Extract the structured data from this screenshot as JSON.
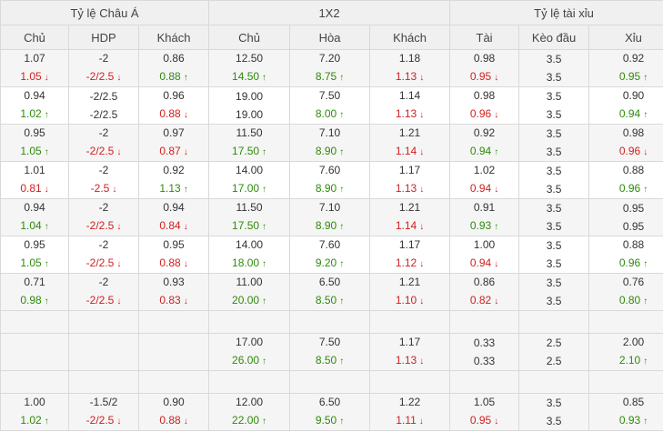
{
  "header": {
    "groups": [
      "Tỷ lệ Châu Á",
      "1X2",
      "Tỷ lệ tài xỉu"
    ],
    "columns": [
      "Chủ",
      "HDP",
      "Khách",
      "Chủ",
      "Hòa",
      "Khách",
      "Tài",
      "Kèo đầu",
      "Xỉu"
    ]
  },
  "colors": {
    "up": "#2e8b0a",
    "down": "#d12020",
    "header_bg": "#f0f0f0",
    "row_alt_bg": "#f5f5f5"
  },
  "rows": [
    {
      "bg": "alt",
      "cells": [
        [
          {
            "v": "1.07"
          },
          {
            "v": "1.05",
            "t": "down"
          }
        ],
        [
          {
            "v": "-2"
          },
          {
            "v": "-2/2.5",
            "t": "down"
          }
        ],
        [
          {
            "v": "0.86"
          },
          {
            "v": "0.88",
            "t": "up"
          }
        ],
        [
          {
            "v": "12.50"
          },
          {
            "v": "14.50",
            "t": "up"
          }
        ],
        [
          {
            "v": "7.20"
          },
          {
            "v": "8.75",
            "t": "up"
          }
        ],
        [
          {
            "v": "1.18"
          },
          {
            "v": "1.13",
            "t": "down"
          }
        ],
        [
          {
            "v": "0.98"
          },
          {
            "v": "0.95",
            "t": "down"
          }
        ],
        [
          {
            "v": "3.5"
          },
          {
            "v": "3.5"
          }
        ],
        [
          {
            "v": "0.92"
          },
          {
            "v": "0.95",
            "t": "up"
          }
        ]
      ]
    },
    {
      "bg": "wh",
      "cells": [
        [
          {
            "v": "0.94"
          },
          {
            "v": "1.02",
            "t": "up"
          }
        ],
        [
          {
            "v": "-2/2.5"
          },
          {
            "v": "-2/2.5"
          }
        ],
        [
          {
            "v": "0.96"
          },
          {
            "v": "0.88",
            "t": "down"
          }
        ],
        [
          {
            "v": "19.00"
          },
          {
            "v": "19.00"
          }
        ],
        [
          {
            "v": "7.50"
          },
          {
            "v": "8.00",
            "t": "up"
          }
        ],
        [
          {
            "v": "1.14"
          },
          {
            "v": "1.13",
            "t": "down"
          }
        ],
        [
          {
            "v": "0.98"
          },
          {
            "v": "0.96",
            "t": "down"
          }
        ],
        [
          {
            "v": "3.5"
          },
          {
            "v": "3.5"
          }
        ],
        [
          {
            "v": "0.90"
          },
          {
            "v": "0.94",
            "t": "up"
          }
        ]
      ]
    },
    {
      "bg": "alt",
      "cells": [
        [
          {
            "v": "0.95"
          },
          {
            "v": "1.05",
            "t": "up"
          }
        ],
        [
          {
            "v": "-2"
          },
          {
            "v": "-2/2.5",
            "t": "down"
          }
        ],
        [
          {
            "v": "0.97"
          },
          {
            "v": "0.87",
            "t": "down"
          }
        ],
        [
          {
            "v": "11.50"
          },
          {
            "v": "17.50",
            "t": "up"
          }
        ],
        [
          {
            "v": "7.10"
          },
          {
            "v": "8.90",
            "t": "up"
          }
        ],
        [
          {
            "v": "1.21"
          },
          {
            "v": "1.14",
            "t": "down"
          }
        ],
        [
          {
            "v": "0.92"
          },
          {
            "v": "0.94",
            "t": "up"
          }
        ],
        [
          {
            "v": "3.5"
          },
          {
            "v": "3.5"
          }
        ],
        [
          {
            "v": "0.98"
          },
          {
            "v": "0.96",
            "t": "down"
          }
        ]
      ]
    },
    {
      "bg": "wh",
      "cells": [
        [
          {
            "v": "1.01"
          },
          {
            "v": "0.81",
            "t": "down"
          }
        ],
        [
          {
            "v": "-2"
          },
          {
            "v": "-2.5",
            "t": "down"
          }
        ],
        [
          {
            "v": "0.92"
          },
          {
            "v": "1.13",
            "t": "up"
          }
        ],
        [
          {
            "v": "14.00"
          },
          {
            "v": "17.00",
            "t": "up"
          }
        ],
        [
          {
            "v": "7.60"
          },
          {
            "v": "8.90",
            "t": "up"
          }
        ],
        [
          {
            "v": "1.17"
          },
          {
            "v": "1.13",
            "t": "down"
          }
        ],
        [
          {
            "v": "1.02"
          },
          {
            "v": "0.94",
            "t": "down"
          }
        ],
        [
          {
            "v": "3.5"
          },
          {
            "v": "3.5"
          }
        ],
        [
          {
            "v": "0.88"
          },
          {
            "v": "0.96",
            "t": "up"
          }
        ]
      ]
    },
    {
      "bg": "alt",
      "cells": [
        [
          {
            "v": "0.94"
          },
          {
            "v": "1.04",
            "t": "up"
          }
        ],
        [
          {
            "v": "-2"
          },
          {
            "v": "-2/2.5",
            "t": "down"
          }
        ],
        [
          {
            "v": "0.94"
          },
          {
            "v": "0.84",
            "t": "down"
          }
        ],
        [
          {
            "v": "11.50"
          },
          {
            "v": "17.50",
            "t": "up"
          }
        ],
        [
          {
            "v": "7.10"
          },
          {
            "v": "8.90",
            "t": "up"
          }
        ],
        [
          {
            "v": "1.21"
          },
          {
            "v": "1.14",
            "t": "down"
          }
        ],
        [
          {
            "v": "0.91"
          },
          {
            "v": "0.93",
            "t": "up"
          }
        ],
        [
          {
            "v": "3.5"
          },
          {
            "v": "3.5"
          }
        ],
        [
          {
            "v": "0.95"
          },
          {
            "v": "0.95"
          }
        ]
      ]
    },
    {
      "bg": "wh",
      "cells": [
        [
          {
            "v": "0.95"
          },
          {
            "v": "1.05",
            "t": "up"
          }
        ],
        [
          {
            "v": "-2"
          },
          {
            "v": "-2/2.5",
            "t": "down"
          }
        ],
        [
          {
            "v": "0.95"
          },
          {
            "v": "0.88",
            "t": "down"
          }
        ],
        [
          {
            "v": "14.00"
          },
          {
            "v": "18.00",
            "t": "up"
          }
        ],
        [
          {
            "v": "7.60"
          },
          {
            "v": "9.20",
            "t": "up"
          }
        ],
        [
          {
            "v": "1.17"
          },
          {
            "v": "1.12",
            "t": "down"
          }
        ],
        [
          {
            "v": "1.00"
          },
          {
            "v": "0.94",
            "t": "down"
          }
        ],
        [
          {
            "v": "3.5"
          },
          {
            "v": "3.5"
          }
        ],
        [
          {
            "v": "0.88"
          },
          {
            "v": "0.96",
            "t": "up"
          }
        ]
      ]
    },
    {
      "bg": "alt",
      "cells": [
        [
          {
            "v": "0.71"
          },
          {
            "v": "0.98",
            "t": "up"
          }
        ],
        [
          {
            "v": "-2"
          },
          {
            "v": "-2/2.5",
            "t": "down"
          }
        ],
        [
          {
            "v": "0.93"
          },
          {
            "v": "0.83",
            "t": "down"
          }
        ],
        [
          {
            "v": "11.00"
          },
          {
            "v": "20.00",
            "t": "up"
          }
        ],
        [
          {
            "v": "6.50"
          },
          {
            "v": "8.50",
            "t": "up"
          }
        ],
        [
          {
            "v": "1.21"
          },
          {
            "v": "1.10",
            "t": "down"
          }
        ],
        [
          {
            "v": "0.86"
          },
          {
            "v": "0.82",
            "t": "down"
          }
        ],
        [
          {
            "v": "3.5"
          },
          {
            "v": "3.5"
          }
        ],
        [
          {
            "v": "0.76"
          },
          {
            "v": "0.80",
            "t": "up"
          }
        ]
      ]
    },
    {
      "empty": true
    },
    {
      "bg": "alt",
      "cells": [
        [],
        [],
        [],
        [
          {
            "v": "17.00"
          },
          {
            "v": "26.00",
            "t": "up"
          }
        ],
        [
          {
            "v": "7.50"
          },
          {
            "v": "8.50",
            "t": "up"
          }
        ],
        [
          {
            "v": "1.17"
          },
          {
            "v": "1.13",
            "t": "down"
          }
        ],
        [
          {
            "v": "0.33"
          },
          {
            "v": "0.33"
          }
        ],
        [
          {
            "v": "2.5"
          },
          {
            "v": "2.5"
          }
        ],
        [
          {
            "v": "2.00"
          },
          {
            "v": "2.10",
            "t": "up"
          }
        ]
      ]
    },
    {
      "empty": true
    },
    {
      "bg": "alt",
      "cells": [
        [
          {
            "v": "1.00"
          },
          {
            "v": "1.02",
            "t": "up"
          }
        ],
        [
          {
            "v": "-1.5/2"
          },
          {
            "v": "-2/2.5",
            "t": "down"
          }
        ],
        [
          {
            "v": "0.90"
          },
          {
            "v": "0.88",
            "t": "down"
          }
        ],
        [
          {
            "v": "12.00"
          },
          {
            "v": "22.00",
            "t": "up"
          }
        ],
        [
          {
            "v": "6.50"
          },
          {
            "v": "9.50",
            "t": "up"
          }
        ],
        [
          {
            "v": "1.22"
          },
          {
            "v": "1.11",
            "t": "down"
          }
        ],
        [
          {
            "v": "1.05"
          },
          {
            "v": "0.95",
            "t": "down"
          }
        ],
        [
          {
            "v": "3.5"
          },
          {
            "v": "3.5"
          }
        ],
        [
          {
            "v": "0.85"
          },
          {
            "v": "0.93",
            "t": "up"
          }
        ]
      ]
    }
  ]
}
